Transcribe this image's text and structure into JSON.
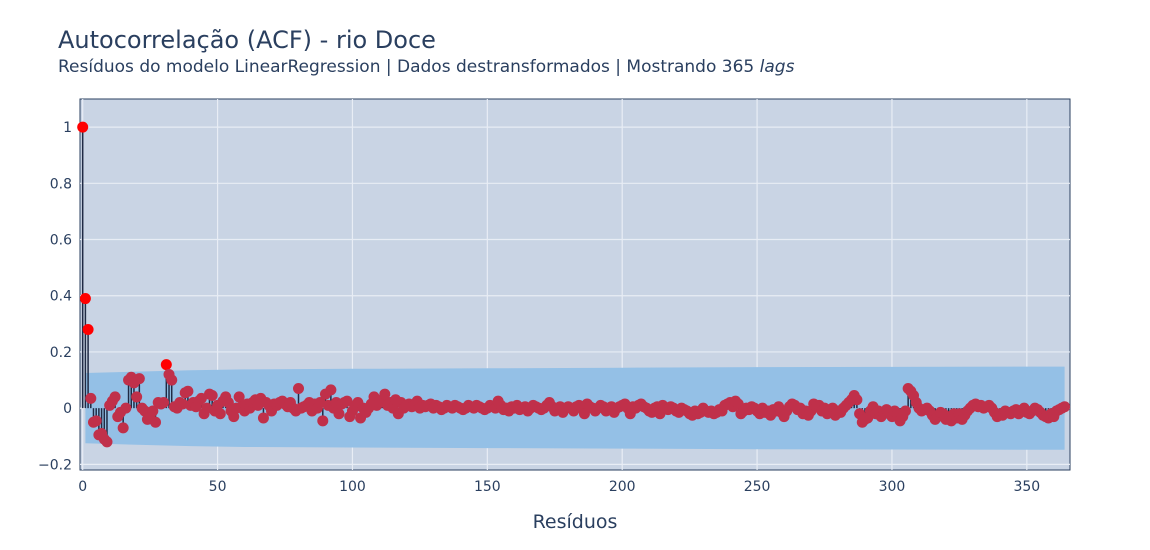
{
  "chart_data": {
    "type": "scatter",
    "title": "Autocorrelação (ACF) - rio Doce",
    "subtitle": {
      "prefix": "Resíduos do modelo LinearRegression | Dados destransformados | Mostrando 365 ",
      "emphasis": "lags"
    },
    "xlabel": "Resíduos",
    "ylabel": "",
    "xlim": [
      -1,
      366
    ],
    "ylim": [
      -0.22,
      1.1
    ],
    "x_ticks": [
      0,
      50,
      100,
      150,
      200,
      250,
      300,
      350
    ],
    "y_ticks": [
      -0.2,
      0,
      0.2,
      0.4,
      0.6,
      0.8,
      1
    ],
    "y_tick_labels": [
      "−0.2",
      "0",
      "0.2",
      "0.4",
      "0.6",
      "0.8",
      "1"
    ],
    "grid": true,
    "colors": {
      "plot_background": "#c9d4e4",
      "grid": "#e8edf5",
      "confidence_band": "#94c0e6",
      "stem": "#1f2a44",
      "marker": "#c0304a",
      "significant_marker": "#ff0000"
    },
    "confidence_band": {
      "x": [
        1,
        20,
        40,
        60,
        100,
        150,
        200,
        250,
        300,
        364
      ],
      "upper": [
        0.125,
        0.13,
        0.135,
        0.138,
        0.14,
        0.142,
        0.144,
        0.146,
        0.147,
        0.148
      ],
      "lower": [
        -0.125,
        -0.13,
        -0.135,
        -0.138,
        -0.14,
        -0.142,
        -0.144,
        -0.146,
        -0.147,
        -0.148
      ]
    },
    "significant_lags": [
      0,
      1,
      2,
      31
    ],
    "series": [
      {
        "lag": [
          0,
          1,
          2,
          3,
          4,
          5,
          6,
          7,
          8,
          9,
          10,
          11,
          12,
          13,
          14,
          15,
          16,
          17,
          18,
          19,
          20,
          21,
          22,
          23,
          24,
          25,
          26,
          27,
          28,
          29,
          30,
          31,
          32,
          33,
          34,
          35,
          36,
          37,
          38,
          39,
          40,
          41,
          42,
          43,
          44,
          45,
          46,
          47,
          48,
          49,
          50,
          51,
          52,
          53,
          54,
          55,
          56,
          57,
          58,
          59,
          60,
          61,
          62,
          63,
          64,
          65,
          66,
          67,
          68,
          69,
          70,
          71,
          72,
          73,
          74,
          75,
          76,
          77,
          78,
          79,
          80,
          81,
          82,
          83,
          84,
          85,
          86,
          87,
          88,
          89,
          90,
          91,
          92,
          93,
          94,
          95,
          96,
          97,
          98,
          99,
          100,
          101,
          102,
          103,
          104,
          105,
          106,
          107,
          108,
          109,
          110,
          111,
          112,
          113,
          114,
          115,
          116,
          117,
          118,
          119,
          120,
          121,
          122,
          123,
          124,
          125,
          126,
          127,
          128,
          129,
          130,
          131,
          132,
          133,
          134,
          135,
          136,
          137,
          138,
          139,
          140,
          141,
          142,
          143,
          144,
          145,
          146,
          147,
          148,
          149,
          150,
          151,
          152,
          153,
          154,
          155,
          156,
          157,
          158,
          159,
          160,
          161,
          162,
          163,
          164,
          165,
          166,
          167,
          168,
          169,
          170,
          171,
          172,
          173,
          174,
          175,
          176,
          177,
          178,
          179,
          180,
          181,
          182,
          183,
          184,
          185,
          186,
          187,
          188,
          189,
          190,
          191,
          192,
          193,
          194,
          195,
          196,
          197,
          198,
          199,
          200,
          201,
          202,
          203,
          204,
          205,
          206,
          207,
          208,
          209,
          210,
          211,
          212,
          213,
          214,
          215,
          216,
          217,
          218,
          219,
          220,
          221,
          222,
          223,
          224,
          225,
          226,
          227,
          228,
          229,
          230,
          231,
          232,
          233,
          234,
          235,
          236,
          237,
          238,
          239,
          240,
          241,
          242,
          243,
          244,
          245,
          246,
          247,
          248,
          249,
          250,
          251,
          252,
          253,
          254,
          255,
          256,
          257,
          258,
          259,
          260,
          261,
          262,
          263,
          264,
          265,
          266,
          267,
          268,
          269,
          270,
          271,
          272,
          273,
          274,
          275,
          276,
          277,
          278,
          279,
          280,
          281,
          282,
          283,
          284,
          285,
          286,
          287,
          288,
          289,
          290,
          291,
          292,
          293,
          294,
          295,
          296,
          297,
          298,
          299,
          300,
          301,
          302,
          303,
          304,
          305,
          306,
          307,
          308,
          309,
          310,
          311,
          312,
          313,
          314,
          315,
          316,
          317,
          318,
          319,
          320,
          321,
          322,
          323,
          324,
          325,
          326,
          327,
          328,
          329,
          330,
          331,
          332,
          333,
          334,
          335,
          336,
          337,
          338,
          339,
          340,
          341,
          342,
          343,
          344,
          345,
          346,
          347,
          348,
          349,
          350,
          351,
          352,
          353,
          354,
          355,
          356,
          357,
          358,
          359,
          360,
          361,
          362,
          363,
          364
        ],
        "acf": [
          1.0,
          0.39,
          0.28,
          0.035,
          -0.05,
          -0.045,
          -0.095,
          -0.09,
          -0.11,
          -0.12,
          0.01,
          0.025,
          0.04,
          -0.03,
          -0.015,
          -0.07,
          0.0,
          0.1,
          0.11,
          0.09,
          0.04,
          0.105,
          0.0,
          -0.01,
          -0.04,
          -0.03,
          -0.01,
          -0.05,
          0.02,
          0.015,
          0.02,
          0.155,
          0.12,
          0.1,
          0.005,
          0.0,
          0.02,
          0.015,
          0.055,
          0.06,
          0.01,
          0.02,
          0.005,
          0.025,
          0.035,
          -0.02,
          0.0,
          0.05,
          0.045,
          -0.01,
          0.01,
          -0.02,
          0.025,
          0.04,
          0.02,
          -0.01,
          -0.03,
          0.0,
          0.04,
          0.005,
          -0.01,
          0.015,
          0.0,
          0.02,
          0.03,
          0.01,
          0.035,
          -0.035,
          0.02,
          0.01,
          -0.01,
          0.015,
          0.01,
          0.02,
          0.025,
          0.015,
          0.005,
          0.02,
          0.0,
          -0.01,
          0.07,
          0.0,
          0.005,
          0.01,
          0.02,
          -0.01,
          0.015,
          0.0,
          0.02,
          -0.045,
          0.05,
          0.01,
          0.065,
          0.0,
          0.02,
          -0.02,
          0.015,
          0.02,
          0.025,
          -0.03,
          -0.01,
          0.005,
          0.02,
          -0.035,
          0.0,
          -0.015,
          0.0,
          0.015,
          0.04,
          0.01,
          0.02,
          0.03,
          0.05,
          0.01,
          0.02,
          0.0,
          0.03,
          -0.02,
          0.02,
          0.0,
          0.01,
          0.015,
          0.005,
          0.01,
          0.025,
          0.0,
          0.01,
          0.005,
          0.01,
          0.015,
          0.0,
          0.01,
          0.005,
          -0.005,
          0.0,
          0.01,
          0.005,
          0.0,
          0.01,
          0.005,
          0.0,
          -0.005,
          0.0,
          0.01,
          0.005,
          0.0,
          0.01,
          0.005,
          0.0,
          -0.005,
          0.0,
          0.01,
          0.005,
          0.0,
          0.025,
          0.01,
          -0.005,
          0.0,
          -0.01,
          0.005,
          0.0,
          0.01,
          -0.005,
          0.0,
          0.005,
          -0.01,
          0.0,
          0.01,
          0.005,
          0.0,
          -0.005,
          0.0,
          0.01,
          0.02,
          0.005,
          -0.01,
          0.0,
          0.005,
          -0.015,
          0.0,
          0.005,
          0.0,
          -0.01,
          0.005,
          0.01,
          0.0,
          -0.02,
          0.015,
          0.005,
          0.0,
          -0.01,
          0.0,
          0.01,
          0.005,
          -0.01,
          0.0,
          0.005,
          -0.015,
          0.0,
          0.005,
          0.01,
          0.015,
          0.0,
          -0.02,
          0.005,
          0.0,
          0.01,
          0.015,
          0.005,
          0.0,
          -0.01,
          -0.015,
          0.0,
          0.005,
          -0.02,
          0.01,
          0.0,
          -0.005,
          0.005,
          0.0,
          -0.01,
          -0.015,
          0.0,
          -0.005,
          -0.01,
          -0.02,
          -0.025,
          -0.01,
          -0.02,
          -0.015,
          0.0,
          -0.01,
          -0.015,
          -0.01,
          -0.02,
          -0.015,
          -0.005,
          -0.01,
          0.01,
          0.015,
          0.02,
          0.005,
          0.025,
          0.015,
          -0.02,
          -0.01,
          0.0,
          -0.005,
          0.005,
          0.0,
          -0.01,
          -0.02,
          0.0,
          -0.015,
          -0.01,
          -0.025,
          -0.005,
          -0.01,
          0.005,
          -0.015,
          -0.03,
          -0.01,
          0.005,
          0.015,
          0.01,
          -0.005,
          0.0,
          -0.02,
          -0.01,
          -0.025,
          -0.01,
          0.015,
          0.005,
          0.01,
          -0.01,
          0.0,
          -0.02,
          -0.005,
          0.0,
          -0.025,
          -0.01,
          -0.015,
          0.0,
          0.01,
          0.02,
          0.03,
          0.045,
          0.03,
          -0.02,
          -0.05,
          -0.04,
          -0.035,
          -0.01,
          0.005,
          -0.02,
          -0.01,
          -0.03,
          -0.02,
          -0.005,
          -0.015,
          -0.03,
          -0.01,
          -0.02,
          -0.045,
          -0.03,
          -0.01,
          0.07,
          0.06,
          0.045,
          0.02,
          0.0,
          -0.01,
          -0.005,
          0.0,
          -0.01,
          -0.025,
          -0.04,
          -0.03,
          -0.015,
          -0.02,
          -0.04,
          -0.03,
          -0.045,
          -0.02,
          -0.035,
          -0.02,
          -0.04,
          -0.025,
          -0.01,
          0.0,
          0.01,
          0.015,
          0.005,
          0.01,
          0.0,
          0.005,
          0.01,
          0.0,
          -0.015,
          -0.03,
          -0.02,
          -0.025,
          -0.01,
          -0.015,
          -0.02,
          -0.01,
          -0.005,
          -0.02,
          -0.01,
          0.0,
          -0.015,
          -0.02,
          -0.01,
          0.0,
          -0.005,
          -0.015,
          -0.025,
          -0.03,
          -0.035,
          -0.02,
          -0.03,
          -0.01,
          -0.005,
          0.0,
          0.005,
          0.0,
          0.005,
          0.0,
          0.005,
          0.0,
          0.005,
          0.0,
          0.005,
          0.0
        ]
      }
    ]
  }
}
